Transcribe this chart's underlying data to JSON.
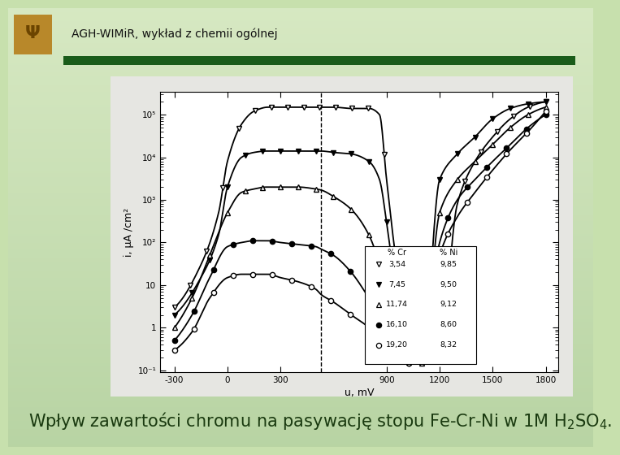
{
  "bg_color_tl": [
    0.82,
    0.9,
    0.75
  ],
  "bg_color_tr": [
    0.75,
    0.87,
    0.68
  ],
  "bg_color_bl": [
    0.68,
    0.82,
    0.58
  ],
  "bg_color_br": [
    0.6,
    0.76,
    0.5
  ],
  "header_text": "AGH-WIMiR, wykład z chemii ogólnej",
  "header_bar_color": "#1a5c1a",
  "plot_box_color": "#e6e6e2",
  "graph_bg": "#ffffff",
  "xlabel": "u, mV",
  "ylabel": "i, μA /cm²",
  "footer_text": "Wpływ zawartości chromu na pasywację stopu Fe-Cr-Ni w 1M H$_2$SO$_4$.",
  "footer_color": "#1a3a10",
  "font_size_header": 10,
  "font_size_footer": 15,
  "dark_green_bar": "#1a5c1a",
  "eagle_color": "#b8882a",
  "legend_cr": [
    "3,54",
    "7,45",
    "11,74",
    "16,10",
    "19,20"
  ],
  "legend_ni": [
    "9,85",
    "9,50",
    "9,12",
    "8,60",
    "8,32"
  ]
}
